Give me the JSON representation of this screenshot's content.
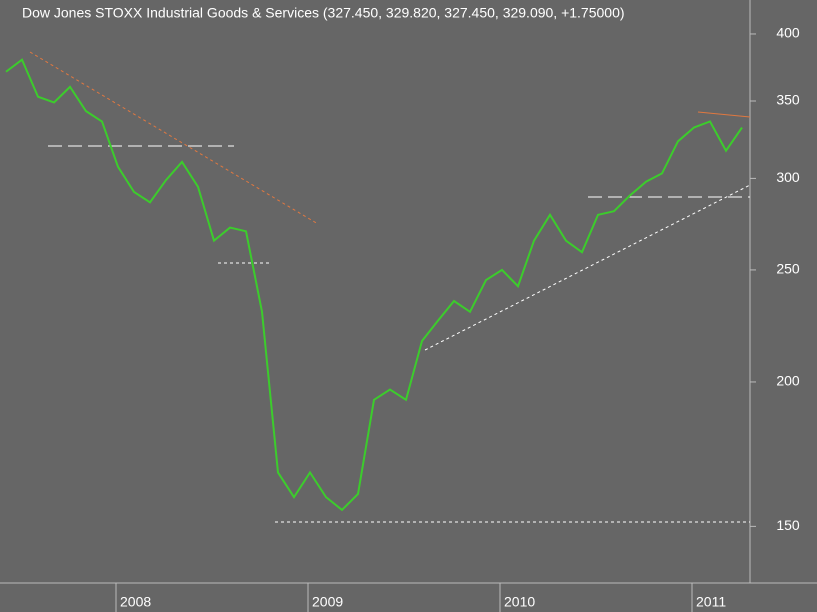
{
  "chart_data": {
    "type": "line",
    "title": "Dow Jones STOXX Industrial Goods & Services (327.450, 329.820, 327.450, 329.090, +1.75000)",
    "categories": [
      null,
      null,
      null,
      null,
      null,
      null,
      null,
      "2008",
      null,
      null,
      null,
      null,
      null,
      null,
      null,
      null,
      null,
      null,
      null,
      "2009",
      null,
      null,
      null,
      null,
      null,
      null,
      null,
      null,
      null,
      null,
      null,
      "2010",
      null,
      null,
      null,
      null,
      null,
      null,
      null,
      null,
      null,
      null,
      null,
      "2011",
      null,
      null,
      null
    ],
    "series": [
      {
        "name": "Dow Jones STOXX Industrial Goods & Services",
        "color": "#3ccc2c",
        "values": [
          371,
          380,
          353,
          349,
          360,
          343,
          336,
          307,
          292,
          286,
          299,
          310,
          295,
          265,
          272,
          270,
          230,
          167,
          159,
          167,
          159,
          155,
          160,
          193,
          197,
          193,
          217,
          226,
          235,
          230,
          245,
          250,
          242,
          265,
          279,
          265,
          259,
          279,
          281,
          290,
          298,
          303,
          323,
          332,
          336,
          317,
          332
        ]
      }
    ],
    "ylim": [
      134,
      428
    ],
    "yticks": [
      150,
      200,
      250,
      300,
      350,
      400
    ],
    "log": true,
    "grid": false
  }
}
